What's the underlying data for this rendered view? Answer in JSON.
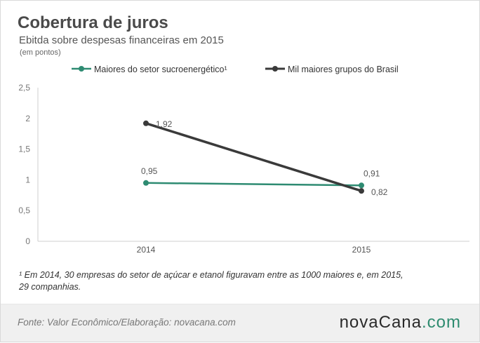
{
  "title": "Cobertura de juros",
  "subtitle": "Ebitda sobre despesas financeiras em 2015",
  "unit": "(em pontos)",
  "footnote": "¹ Em 2014, 30 empresas  do setor de açúcar e etanol figuravam entre as 1000 maiores e, em 2015, 29 companhias.",
  "source": "Fonte: Valor  Econômico/Elaboração: novacana.com",
  "brand": {
    "part1": "novaCana",
    "part2": ".com",
    "color_dark": "#2a2a2a",
    "color_accent": "#2e8b6f"
  },
  "chart_data": {
    "type": "line",
    "categories": [
      "2014",
      "2015"
    ],
    "ylim": [
      0,
      2.5
    ],
    "yticks": [
      "0",
      "0,5",
      "1",
      "1,5",
      "2",
      "2,5"
    ],
    "ytick_values": [
      0,
      0.5,
      1,
      1.5,
      2,
      2.5
    ],
    "grid": false,
    "legend_position": "top",
    "series": [
      {
        "name": "Maiores do setor sucroenergético¹",
        "values": [
          0.95,
          0.91
        ],
        "labels": [
          "0,95",
          "0,91"
        ],
        "color": "#2e8b72"
      },
      {
        "name": "Mil maiores grupos do Brasil",
        "values": [
          1.92,
          0.82
        ],
        "labels": [
          "1,92",
          "0,82"
        ],
        "color": "#3a3a3a"
      }
    ]
  }
}
